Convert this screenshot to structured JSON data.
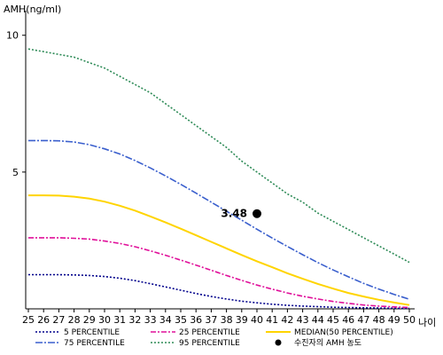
{
  "chart_data": {
    "type": "line",
    "ylabel": "AMH(ng/ml)",
    "xlabel": "나이",
    "x": [
      25,
      26,
      27,
      28,
      29,
      30,
      31,
      32,
      33,
      34,
      35,
      36,
      37,
      38,
      39,
      40,
      41,
      42,
      43,
      44,
      45,
      46,
      47,
      48,
      49,
      50
    ],
    "ylim": [
      0,
      10.9
    ],
    "yticks": [
      5,
      10
    ],
    "series": [
      {
        "name": "5 PERCENTILE",
        "color": "#00008b",
        "dash": "2,2",
        "values": [
          1.25,
          1.25,
          1.25,
          1.24,
          1.22,
          1.18,
          1.12,
          1.03,
          0.92,
          0.8,
          0.68,
          0.56,
          0.45,
          0.36,
          0.28,
          0.22,
          0.17,
          0.13,
          0.1,
          0.08,
          0.06,
          0.05,
          0.04,
          0.03,
          0.02,
          0.02
        ]
      },
      {
        "name": "25 PERCENTILE",
        "color": "#e0109a",
        "dash": "6,2,2,2",
        "values": [
          2.6,
          2.6,
          2.6,
          2.58,
          2.55,
          2.48,
          2.39,
          2.27,
          2.12,
          1.96,
          1.78,
          1.6,
          1.41,
          1.22,
          1.04,
          0.87,
          0.72,
          0.58,
          0.46,
          0.36,
          0.27,
          0.2,
          0.14,
          0.1,
          0.07,
          0.05
        ]
      },
      {
        "name": "MEDIAN(50 PERCENTILE)",
        "color": "#ffd400",
        "dash": "",
        "values": [
          4.15,
          4.15,
          4.14,
          4.1,
          4.03,
          3.92,
          3.77,
          3.59,
          3.38,
          3.16,
          2.93,
          2.69,
          2.45,
          2.21,
          1.97,
          1.74,
          1.52,
          1.3,
          1.1,
          0.91,
          0.74,
          0.58,
          0.45,
          0.33,
          0.23,
          0.14
        ]
      },
      {
        "name": "75 PERCENTILE",
        "color": "#3a5fcd",
        "dash": "8,2,2,2",
        "values": [
          6.15,
          6.15,
          6.14,
          6.1,
          6.0,
          5.85,
          5.66,
          5.42,
          5.15,
          4.86,
          4.55,
          4.23,
          3.9,
          3.57,
          3.24,
          2.91,
          2.59,
          2.28,
          1.98,
          1.69,
          1.42,
          1.17,
          0.93,
          0.72,
          0.53,
          0.35
        ]
      },
      {
        "name": "95 PERCENTILE",
        "color": "#2e8b57",
        "dash": "2,2",
        "values": [
          9.5,
          9.4,
          9.3,
          9.2,
          9.0,
          8.8,
          8.5,
          8.2,
          7.9,
          7.5,
          7.1,
          6.7,
          6.3,
          5.9,
          5.4,
          5.0,
          4.6,
          4.2,
          3.9,
          3.5,
          3.2,
          2.9,
          2.6,
          2.3,
          2.0,
          1.7
        ]
      }
    ],
    "highlight": {
      "label": "수진자의 AMH 농도",
      "x": 40,
      "y": 3.48,
      "text": "3.48"
    }
  }
}
